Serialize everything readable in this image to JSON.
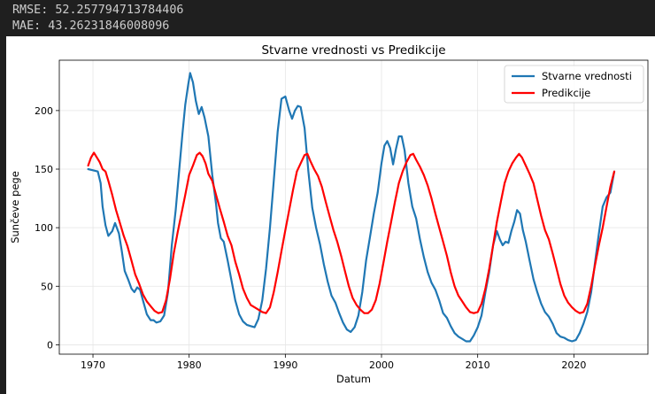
{
  "console": {
    "rmse_line": "RMSE: 52.257794713784406",
    "mae_line": "MAE: 43.26231846008096"
  },
  "chart_data": {
    "type": "line",
    "title": "Stvarne vrednosti vs Predikcije",
    "xlabel": "Datum",
    "ylabel": "Sunčeve pege",
    "xlim": [
      1966.5,
      2027.7
    ],
    "ylim": [
      -8,
      243
    ],
    "x_ticks": [
      1970,
      1980,
      1990,
      2000,
      2010,
      2020
    ],
    "y_ticks": [
      0,
      50,
      100,
      150,
      200
    ],
    "grid": true,
    "legend_position": "top-right",
    "series": [
      {
        "name": "Stvarne vrednosti",
        "color": "#1f77b4",
        "points": [
          [
            1969.5,
            150
          ],
          [
            1970.0,
            149
          ],
          [
            1970.5,
            148
          ],
          [
            1970.8,
            138
          ],
          [
            1971.0,
            118
          ],
          [
            1971.3,
            102
          ],
          [
            1971.6,
            93
          ],
          [
            1972.0,
            97
          ],
          [
            1972.3,
            104
          ],
          [
            1972.7,
            95
          ],
          [
            1973.0,
            80
          ],
          [
            1973.3,
            63
          ],
          [
            1973.7,
            55
          ],
          [
            1974.0,
            48
          ],
          [
            1974.3,
            45
          ],
          [
            1974.6,
            49
          ],
          [
            1974.9,
            47
          ],
          [
            1975.2,
            38
          ],
          [
            1975.6,
            26
          ],
          [
            1976.0,
            21
          ],
          [
            1976.3,
            21
          ],
          [
            1976.6,
            19
          ],
          [
            1977.0,
            20
          ],
          [
            1977.4,
            25
          ],
          [
            1977.8,
            45
          ],
          [
            1978.2,
            85
          ],
          [
            1978.6,
            115
          ],
          [
            1979.0,
            152
          ],
          [
            1979.3,
            180
          ],
          [
            1979.6,
            205
          ],
          [
            1979.9,
            222
          ],
          [
            1980.1,
            232
          ],
          [
            1980.4,
            224
          ],
          [
            1980.7,
            208
          ],
          [
            1981.0,
            197
          ],
          [
            1981.3,
            203
          ],
          [
            1981.6,
            194
          ],
          [
            1982.0,
            178
          ],
          [
            1982.4,
            145
          ],
          [
            1982.8,
            120
          ],
          [
            1983.0,
            104
          ],
          [
            1983.3,
            91
          ],
          [
            1983.6,
            88
          ],
          [
            1984.0,
            72
          ],
          [
            1984.4,
            55
          ],
          [
            1984.8,
            38
          ],
          [
            1985.2,
            26
          ],
          [
            1985.6,
            20
          ],
          [
            1986.0,
            17
          ],
          [
            1986.4,
            16
          ],
          [
            1986.8,
            15
          ],
          [
            1987.2,
            22
          ],
          [
            1987.6,
            38
          ],
          [
            1988.0,
            65
          ],
          [
            1988.4,
            100
          ],
          [
            1988.8,
            140
          ],
          [
            1989.2,
            182
          ],
          [
            1989.6,
            210
          ],
          [
            1990.0,
            212
          ],
          [
            1990.4,
            200
          ],
          [
            1990.7,
            193
          ],
          [
            1991.0,
            200
          ],
          [
            1991.3,
            204
          ],
          [
            1991.6,
            203
          ],
          [
            1992.0,
            185
          ],
          [
            1992.4,
            148
          ],
          [
            1992.8,
            117
          ],
          [
            1993.2,
            100
          ],
          [
            1993.6,
            86
          ],
          [
            1994.0,
            69
          ],
          [
            1994.4,
            54
          ],
          [
            1994.8,
            42
          ],
          [
            1995.2,
            36
          ],
          [
            1995.6,
            27
          ],
          [
            1996.0,
            19
          ],
          [
            1996.4,
            13
          ],
          [
            1996.8,
            11
          ],
          [
            1997.2,
            15
          ],
          [
            1997.6,
            25
          ],
          [
            1998.0,
            45
          ],
          [
            1998.4,
            72
          ],
          [
            1998.8,
            92
          ],
          [
            1999.2,
            112
          ],
          [
            1999.6,
            130
          ],
          [
            2000.0,
            155
          ],
          [
            2000.3,
            170
          ],
          [
            2000.6,
            174
          ],
          [
            2000.9,
            168
          ],
          [
            2001.2,
            154
          ],
          [
            2001.5,
            167
          ],
          [
            2001.8,
            178
          ],
          [
            2002.1,
            178
          ],
          [
            2002.4,
            166
          ],
          [
            2002.8,
            138
          ],
          [
            2003.2,
            118
          ],
          [
            2003.6,
            108
          ],
          [
            2004.0,
            90
          ],
          [
            2004.4,
            75
          ],
          [
            2004.8,
            62
          ],
          [
            2005.2,
            53
          ],
          [
            2005.6,
            47
          ],
          [
            2006.0,
            38
          ],
          [
            2006.4,
            27
          ],
          [
            2006.8,
            23
          ],
          [
            2007.2,
            16
          ],
          [
            2007.6,
            10
          ],
          [
            2008.0,
            7
          ],
          [
            2008.4,
            5
          ],
          [
            2008.8,
            3
          ],
          [
            2009.2,
            3
          ],
          [
            2009.6,
            8
          ],
          [
            2010.0,
            15
          ],
          [
            2010.4,
            25
          ],
          [
            2010.8,
            45
          ],
          [
            2011.2,
            62
          ],
          [
            2011.6,
            85
          ],
          [
            2012.0,
            97
          ],
          [
            2012.3,
            90
          ],
          [
            2012.6,
            85
          ],
          [
            2012.9,
            88
          ],
          [
            2013.2,
            87
          ],
          [
            2013.5,
            97
          ],
          [
            2013.8,
            105
          ],
          [
            2014.1,
            115
          ],
          [
            2014.4,
            112
          ],
          [
            2014.7,
            98
          ],
          [
            2015.0,
            88
          ],
          [
            2015.4,
            72
          ],
          [
            2015.8,
            56
          ],
          [
            2016.2,
            45
          ],
          [
            2016.6,
            35
          ],
          [
            2017.0,
            28
          ],
          [
            2017.4,
            24
          ],
          [
            2017.8,
            18
          ],
          [
            2018.2,
            10
          ],
          [
            2018.6,
            7
          ],
          [
            2019.0,
            6
          ],
          [
            2019.4,
            4
          ],
          [
            2019.8,
            3
          ],
          [
            2020.2,
            4
          ],
          [
            2020.6,
            10
          ],
          [
            2021.0,
            18
          ],
          [
            2021.4,
            28
          ],
          [
            2021.8,
            45
          ],
          [
            2022.2,
            70
          ],
          [
            2022.6,
            95
          ],
          [
            2023.0,
            118
          ],
          [
            2023.4,
            126
          ],
          [
            2023.8,
            130
          ],
          [
            2024.2,
            148
          ]
        ]
      },
      {
        "name": "Predikcije",
        "color": "#ff0000",
        "points": [
          [
            1969.5,
            153
          ],
          [
            1969.8,
            160
          ],
          [
            1970.1,
            164
          ],
          [
            1970.4,
            160
          ],
          [
            1970.7,
            156
          ],
          [
            1971.0,
            150
          ],
          [
            1971.3,
            148
          ],
          [
            1971.6,
            140
          ],
          [
            1972.0,
            128
          ],
          [
            1972.4,
            115
          ],
          [
            1972.8,
            104
          ],
          [
            1973.2,
            93
          ],
          [
            1973.6,
            84
          ],
          [
            1974.0,
            72
          ],
          [
            1974.4,
            60
          ],
          [
            1974.8,
            52
          ],
          [
            1975.2,
            43
          ],
          [
            1975.6,
            37
          ],
          [
            1976.0,
            33
          ],
          [
            1976.4,
            29
          ],
          [
            1976.8,
            27
          ],
          [
            1977.2,
            28
          ],
          [
            1977.6,
            38
          ],
          [
            1978.0,
            56
          ],
          [
            1978.4,
            78
          ],
          [
            1978.8,
            96
          ],
          [
            1979.2,
            112
          ],
          [
            1979.6,
            128
          ],
          [
            1980.0,
            145
          ],
          [
            1980.4,
            153
          ],
          [
            1980.8,
            162
          ],
          [
            1981.1,
            164
          ],
          [
            1981.4,
            161
          ],
          [
            1981.7,
            155
          ],
          [
            1982.0,
            146
          ],
          [
            1982.4,
            140
          ],
          [
            1982.8,
            128
          ],
          [
            1983.2,
            116
          ],
          [
            1983.6,
            105
          ],
          [
            1984.0,
            93
          ],
          [
            1984.4,
            85
          ],
          [
            1984.8,
            71
          ],
          [
            1985.2,
            60
          ],
          [
            1985.6,
            48
          ],
          [
            1986.0,
            40
          ],
          [
            1986.4,
            34
          ],
          [
            1986.8,
            32
          ],
          [
            1987.2,
            30
          ],
          [
            1987.6,
            28
          ],
          [
            1988.0,
            27
          ],
          [
            1988.4,
            32
          ],
          [
            1988.8,
            45
          ],
          [
            1989.2,
            62
          ],
          [
            1989.6,
            80
          ],
          [
            1990.0,
            98
          ],
          [
            1990.4,
            115
          ],
          [
            1990.8,
            132
          ],
          [
            1991.2,
            148
          ],
          [
            1991.6,
            155
          ],
          [
            1992.0,
            162
          ],
          [
            1992.3,
            163
          ],
          [
            1992.6,
            157
          ],
          [
            1993.0,
            150
          ],
          [
            1993.4,
            144
          ],
          [
            1993.8,
            135
          ],
          [
            1994.2,
            122
          ],
          [
            1994.6,
            110
          ],
          [
            1995.0,
            98
          ],
          [
            1995.4,
            88
          ],
          [
            1995.8,
            76
          ],
          [
            1996.2,
            63
          ],
          [
            1996.6,
            50
          ],
          [
            1997.0,
            40
          ],
          [
            1997.4,
            34
          ],
          [
            1997.8,
            30
          ],
          [
            1998.2,
            27
          ],
          [
            1998.6,
            27
          ],
          [
            1999.0,
            30
          ],
          [
            1999.4,
            38
          ],
          [
            1999.8,
            52
          ],
          [
            2000.2,
            70
          ],
          [
            2000.6,
            88
          ],
          [
            2001.0,
            105
          ],
          [
            2001.4,
            122
          ],
          [
            2001.8,
            138
          ],
          [
            2002.2,
            148
          ],
          [
            2002.6,
            156
          ],
          [
            2003.0,
            162
          ],
          [
            2003.3,
            163
          ],
          [
            2003.6,
            158
          ],
          [
            2004.0,
            152
          ],
          [
            2004.4,
            145
          ],
          [
            2004.8,
            136
          ],
          [
            2005.2,
            125
          ],
          [
            2005.6,
            112
          ],
          [
            2006.0,
            100
          ],
          [
            2006.4,
            88
          ],
          [
            2006.8,
            76
          ],
          [
            2007.2,
            62
          ],
          [
            2007.6,
            50
          ],
          [
            2008.0,
            42
          ],
          [
            2008.4,
            37
          ],
          [
            2008.8,
            32
          ],
          [
            2009.2,
            28
          ],
          [
            2009.6,
            27
          ],
          [
            2010.0,
            28
          ],
          [
            2010.4,
            35
          ],
          [
            2010.8,
            48
          ],
          [
            2011.2,
            65
          ],
          [
            2011.6,
            85
          ],
          [
            2012.0,
            105
          ],
          [
            2012.4,
            122
          ],
          [
            2012.8,
            138
          ],
          [
            2013.2,
            148
          ],
          [
            2013.6,
            155
          ],
          [
            2014.0,
            160
          ],
          [
            2014.3,
            163
          ],
          [
            2014.6,
            160
          ],
          [
            2015.0,
            153
          ],
          [
            2015.4,
            146
          ],
          [
            2015.8,
            138
          ],
          [
            2016.2,
            124
          ],
          [
            2016.6,
            110
          ],
          [
            2017.0,
            98
          ],
          [
            2017.4,
            90
          ],
          [
            2017.8,
            78
          ],
          [
            2018.2,
            65
          ],
          [
            2018.6,
            52
          ],
          [
            2019.0,
            42
          ],
          [
            2019.4,
            36
          ],
          [
            2019.8,
            32
          ],
          [
            2020.2,
            29
          ],
          [
            2020.6,
            27
          ],
          [
            2021.0,
            28
          ],
          [
            2021.4,
            35
          ],
          [
            2021.8,
            50
          ],
          [
            2022.2,
            68
          ],
          [
            2022.6,
            85
          ],
          [
            2023.0,
            100
          ],
          [
            2023.4,
            118
          ],
          [
            2023.8,
            135
          ],
          [
            2024.2,
            148
          ]
        ]
      }
    ]
  }
}
